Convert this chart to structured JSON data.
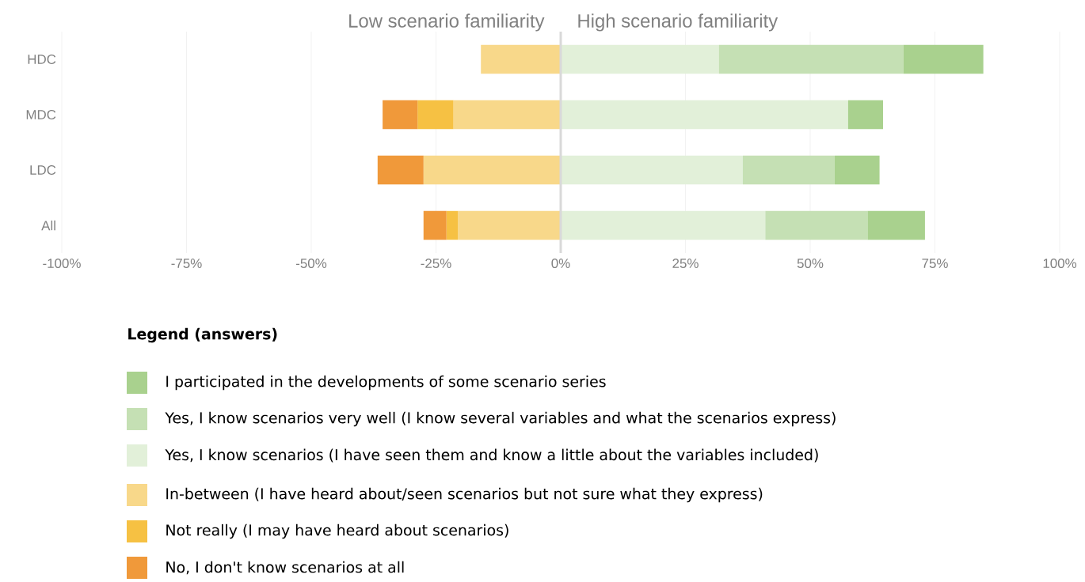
{
  "chart_data": {
    "type": "bar",
    "orientation": "horizontal",
    "stacked": true,
    "categories": [
      "HDC",
      "MDC",
      "LDC",
      "All"
    ],
    "annotations": [
      "Low scenario familiarity",
      "High scenario familiarity"
    ],
    "legend_title": "Legend (answers)",
    "legend": "bottom",
    "grid": "x",
    "xlim": [
      -100,
      100
    ],
    "xticks": [
      {
        "value": -100,
        "label": "-100%"
      },
      {
        "value": -75,
        "label": "-75%"
      },
      {
        "value": -50,
        "label": "-50%"
      },
      {
        "value": -25,
        "label": "-25%"
      },
      {
        "value": 0,
        "label": "0%"
      },
      {
        "value": 25,
        "label": "25%"
      },
      {
        "value": 50,
        "label": "50%"
      },
      {
        "value": 75,
        "label": "75%"
      },
      {
        "value": 100,
        "label": "100%"
      }
    ],
    "ref_lines": [
      {
        "axis": "x",
        "value": 0,
        "color": "#d9d9d9"
      }
    ],
    "series": [
      {
        "name": "Yes, I know scenarios (I have seen them and know a little about the variables included)",
        "color": "#e2f0d9",
        "values": [
          31.7,
          57.6,
          36.5,
          41
        ]
      },
      {
        "name": "Yes, I know scenarios very well (I know several variables and what the scenarios express)",
        "color": "#c5e0b4",
        "values": [
          37,
          0,
          18.4,
          20.5
        ]
      },
      {
        "name": "I participated in the developments of some scenario series",
        "color": "#a9d18e",
        "values": [
          16,
          7,
          9,
          11.5
        ]
      },
      {
        "name": "In-between (I have heard about/seen scenarios but not sure what they express)",
        "color": "#f8d88a",
        "values": [
          -16,
          -21.5,
          -27.5,
          -20.6
        ]
      },
      {
        "name": "Not really (I may have heard about scenarios)",
        "color": "#f6c143",
        "values": [
          0,
          -7.2,
          0,
          -2.3
        ]
      },
      {
        "name": "No, I don't know scenarios at all",
        "color": "#f0993a",
        "values": [
          0,
          -7,
          -9.2,
          -4.6
        ]
      }
    ]
  }
}
